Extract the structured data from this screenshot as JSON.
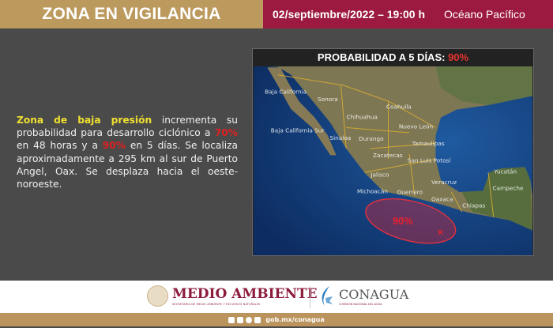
{
  "header": {
    "title": "ZONA EN VIGILANCIA",
    "datetime": "02/septiembre/2022 – 19:00 h",
    "region": "Océano Pacífico"
  },
  "description": {
    "highlight": "Zona de baja presión",
    "part1": " incrementa su probabilidad para desarrollo ciclónico a ",
    "prob48": "70%",
    "part2": " en 48 horas y a ",
    "prob5d": "90%",
    "part3": " en 5 días. Se localiza aproximadamente a 295 km al sur de Puerto Angel, Oax. Se desplaza hacia el oeste-noroeste."
  },
  "map": {
    "title": "PROBABILIDAD A 5 DÍAS: ",
    "title_pct": "90%",
    "zone_label": "90%",
    "states": [
      "Baja California",
      "Sonora",
      "Chihuahua",
      "Coahuila",
      "Baja California Sur",
      "Sinaloa",
      "Durango",
      "Nuevo León",
      "Tamaulipas",
      "Zacatecas",
      "San Luis Potosí",
      "Jalisco",
      "Michoacán",
      "Guerrero",
      "Veracruz",
      "Oaxaca",
      "Chiapas",
      "Yucatán",
      "Campeche"
    ],
    "colors": {
      "ocean": "#123a78",
      "land": "#7a7a52",
      "zone": "#c8283c"
    }
  },
  "footer": {
    "ma_title": "MEDIO AMBIENTE",
    "ma_sub": "SECRETARÍA DE MEDIO AMBIENTE Y RECURSOS NATURALES",
    "cg_title": "CONAGUA",
    "cg_sub": "COMISIÓN NACIONAL DEL AGUA",
    "social": [
      "facebook",
      "twitter",
      "instagram",
      "youtube"
    ],
    "url": "gob.mx/conagua"
  }
}
